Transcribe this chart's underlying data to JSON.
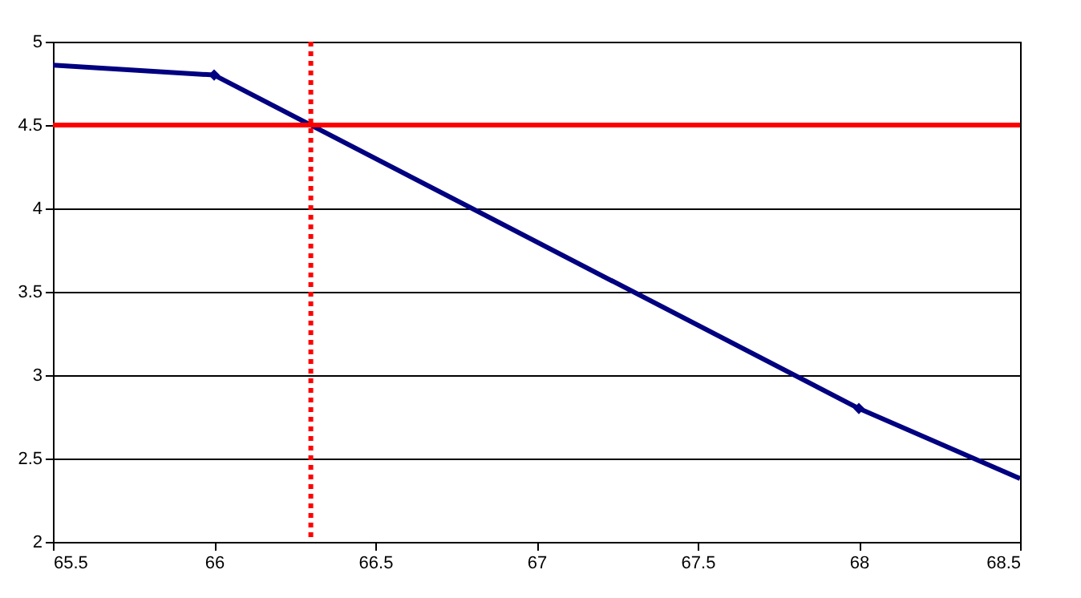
{
  "chart_data": {
    "type": "line",
    "xlim": [
      65.5,
      68.5
    ],
    "xticks": [
      65.5,
      66,
      66.5,
      67,
      67.5,
      68,
      68.5
    ],
    "ylim": [
      2,
      5
    ],
    "yticks": [
      2,
      2.5,
      3,
      3.5,
      4,
      4.5,
      5
    ],
    "grid": "y",
    "series": [
      {
        "color": "#000080",
        "x": [
          65.5,
          66,
          68,
          68.5
        ],
        "values": [
          4.86,
          4.8,
          2.8,
          2.38
        ],
        "marker": "none"
      },
      {
        "type": "scatter",
        "color": "#000080",
        "x": [
          66,
          68
        ],
        "values": [
          4.8,
          2.8
        ],
        "marker": "diamond"
      }
    ],
    "ref_lines": [
      {
        "axis": "y",
        "value": 4.5,
        "color": "#ff0000",
        "line_style": "solid"
      },
      {
        "axis": "x",
        "value": 66.3,
        "color": "#ff0000",
        "line_style": "dotted"
      }
    ]
  }
}
